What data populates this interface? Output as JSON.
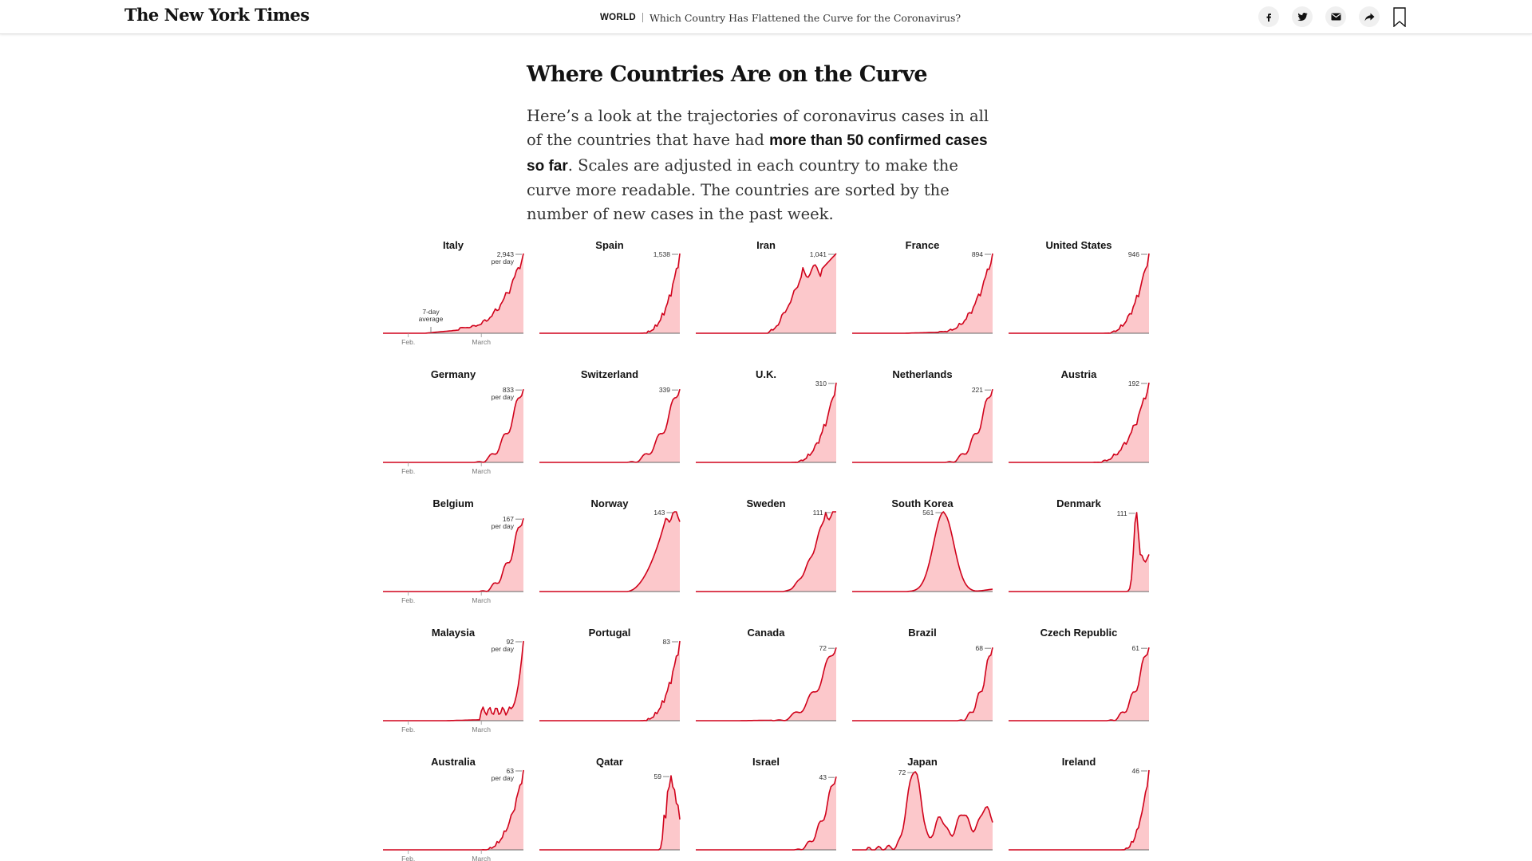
{
  "header": {
    "logo": "The New York Times",
    "section": "WORLD",
    "headline": "Which Country Has Flattened the Curve for the Coronavirus?"
  },
  "share": {
    "facebook_icon": "facebook-icon",
    "twitter_icon": "twitter-icon",
    "email_icon": "email-icon",
    "share_icon": "share-arrow-icon",
    "bookmark_icon": "bookmark-icon"
  },
  "article": {
    "title": "Where Countries Are on the Curve",
    "intro_1": "Here’s a look at the trajectories of coronavirus cases in all of the countries that have had ",
    "intro_bold": "more than 50 confirmed cases so far",
    "intro_2": ". Scales are adjusted in each country to make the curve more readable. The countries are sorted by the number of new cases in the past week."
  },
  "colors": {
    "line": "#d0021b",
    "fill": "#fcc8cb",
    "axis": "#666666"
  },
  "chart_data": {
    "type": "area",
    "unit_label": "per day",
    "average_note": [
      "7-day",
      "average"
    ],
    "x_ticks": [
      "Feb.",
      "March"
    ],
    "countries": [
      {
        "name": "Italy",
        "peak": "2,943",
        "unit": true,
        "avg_note": true,
        "ticks": true,
        "shape": "steep",
        "start": 0.55,
        "frac": 0.07
      },
      {
        "name": "Spain",
        "peak": "1,538",
        "shape": "steep",
        "start": 0.72,
        "frac": 0.0
      },
      {
        "name": "Iran",
        "peak": "1,041",
        "shape": "iran",
        "start": 0.52,
        "frac": 0.0
      },
      {
        "name": "France",
        "peak": "894",
        "shape": "steep",
        "start": 0.62,
        "frac": 0.02
      },
      {
        "name": "United States",
        "peak": "946",
        "shape": "steep",
        "start": 0.68,
        "frac": 0.0
      },
      {
        "name": "Germany",
        "peak": "833",
        "unit": true,
        "ticks": true,
        "shape": "bumpy",
        "start": 0.65,
        "frac": 0.0
      },
      {
        "name": "Switzerland",
        "peak": "339",
        "shape": "bumpy",
        "start": 0.62,
        "frac": 0.0
      },
      {
        "name": "U.K.",
        "peak": "310",
        "shape": "steep",
        "start": 0.68,
        "frac": 0.0
      },
      {
        "name": "Netherlands",
        "peak": "221",
        "shape": "bumpy",
        "start": 0.66,
        "frac": 0.0
      },
      {
        "name": "Austria",
        "peak": "192",
        "shape": "steep",
        "start": 0.6,
        "frac": 0.0
      },
      {
        "name": "Belgium",
        "peak": "167",
        "unit": true,
        "ticks": true,
        "shape": "bumpy",
        "start": 0.68,
        "frac": 0.0
      },
      {
        "name": "Norway",
        "peak": "143",
        "shape": "norway",
        "start": 0.62,
        "frac": 0.0
      },
      {
        "name": "Sweden",
        "peak": "111",
        "shape": "sweden",
        "start": 0.62,
        "frac": 0.0
      },
      {
        "name": "South Korea",
        "peak": "561",
        "shape": "korea",
        "start": 0.4,
        "frac": 0.0
      },
      {
        "name": "Denmark",
        "peak": "111",
        "shape": "denmark",
        "start": 0.8,
        "frac": 0.0
      },
      {
        "name": "Malaysia",
        "peak": "92",
        "unit": true,
        "ticks": true,
        "shape": "malaysia",
        "start": 0.7,
        "frac": 0.02
      },
      {
        "name": "Portugal",
        "peak": "83",
        "shape": "steep",
        "start": 0.72,
        "frac": 0.0
      },
      {
        "name": "Canada",
        "peak": "72",
        "shape": "bumpy",
        "start": 0.55,
        "frac": 0.01
      },
      {
        "name": "Brazil",
        "peak": "68",
        "shape": "bumpy",
        "start": 0.75,
        "frac": 0.0
      },
      {
        "name": "Czech Republic",
        "peak": "61",
        "shape": "bumpy",
        "start": 0.7,
        "frac": 0.0
      },
      {
        "name": "Australia",
        "peak": "63",
        "unit": true,
        "ticks": true,
        "shape": "steep",
        "start": 0.7,
        "frac": 0.0
      },
      {
        "name": "Qatar",
        "peak": "59",
        "shape": "qatar",
        "start": 0.8,
        "frac": 0.0
      },
      {
        "name": "Israel",
        "peak": "43",
        "shape": "bumpy",
        "start": 0.7,
        "frac": 0.0
      },
      {
        "name": "Japan",
        "peak": "72",
        "shape": "japan",
        "start": 0.1,
        "frac": 0.0
      },
      {
        "name": "Ireland",
        "peak": "46",
        "shape": "steep",
        "start": 0.8,
        "frac": 0.0
      }
    ]
  }
}
